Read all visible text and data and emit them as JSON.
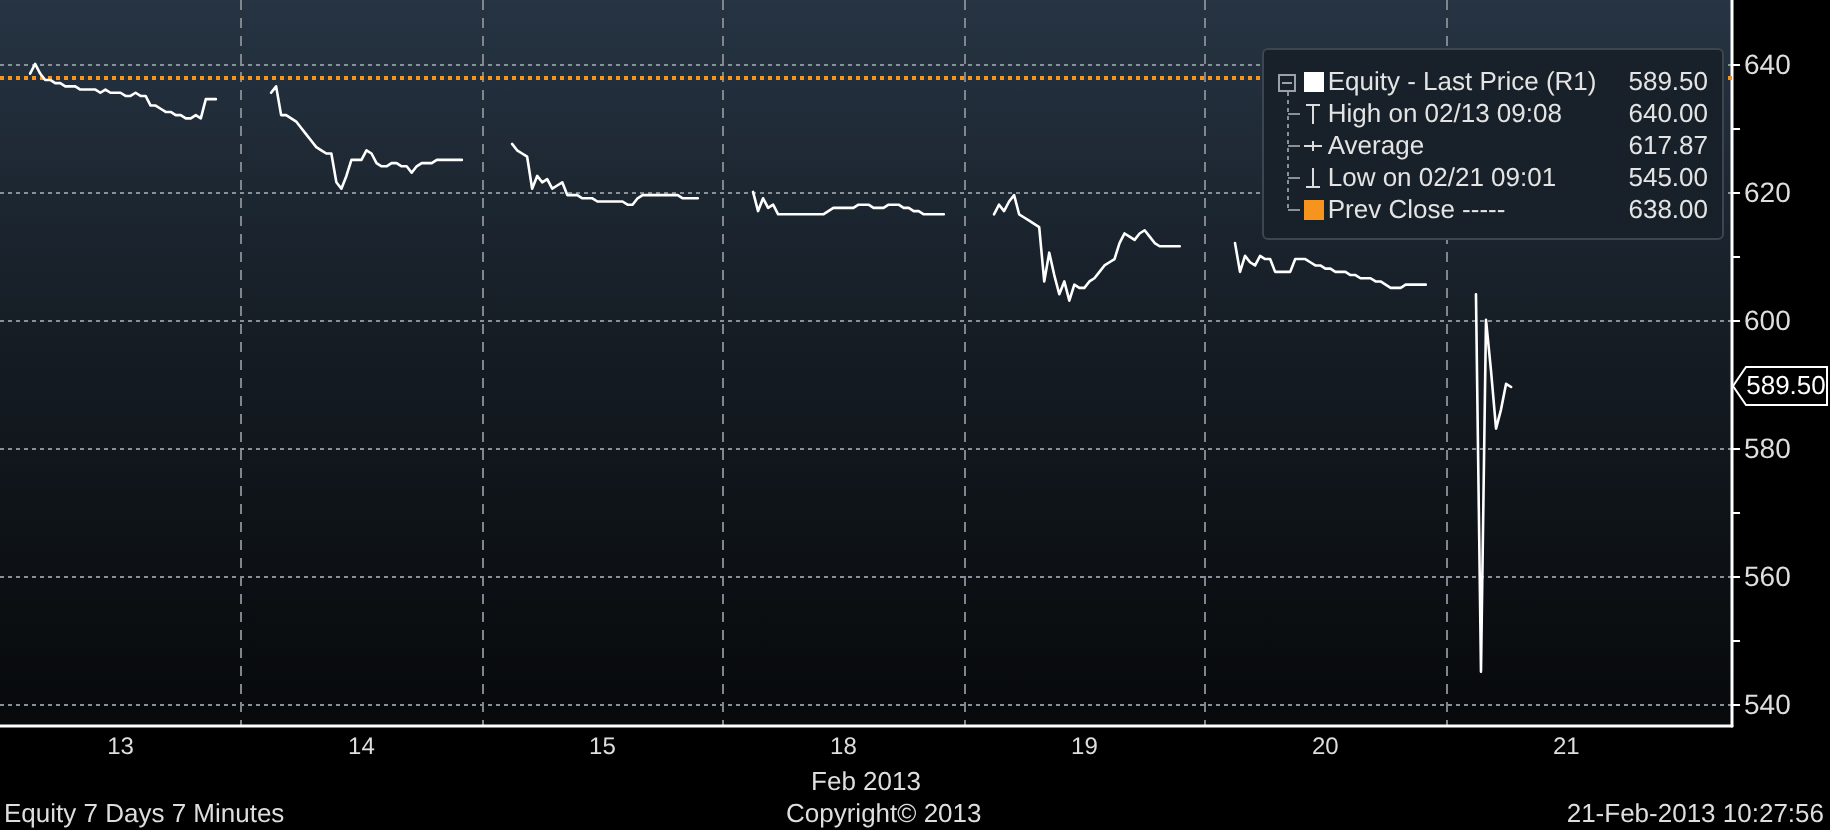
{
  "chart_data": {
    "type": "line",
    "xlabel": "Feb 2013",
    "categories": [
      null,
      null,
      null,
      null,
      null,
      null,
      null,
      null,
      null,
      null,
      null,
      null,
      null,
      null,
      null,
      null,
      null,
      null,
      null,
      null,
      null,
      null,
      null,
      null,
      "13",
      null,
      null,
      null,
      null,
      null,
      null,
      null,
      null,
      null,
      null,
      null,
      null,
      null,
      null,
      null,
      null,
      null,
      null,
      null,
      null,
      null,
      null,
      null,
      null,
      null,
      null,
      null,
      null,
      null,
      null,
      null,
      null,
      null,
      null,
      null,
      null,
      null,
      null,
      null,
      null,
      null,
      null,
      null,
      null,
      null,
      null,
      null,
      "14",
      null,
      null,
      null,
      null,
      null,
      null,
      null,
      null,
      null,
      null,
      null,
      null,
      null,
      null,
      null,
      null,
      null,
      null,
      null,
      null,
      null,
      null,
      null,
      null,
      null,
      null,
      null,
      null,
      null,
      null,
      null,
      null,
      null,
      null,
      null,
      null,
      null,
      null,
      null,
      null,
      null,
      null,
      null,
      null,
      null,
      null,
      null,
      "15",
      null,
      null,
      null,
      null,
      null,
      null,
      null,
      null,
      null,
      null,
      null,
      null,
      null,
      null,
      null,
      null,
      null,
      null,
      null,
      null,
      null,
      null,
      null,
      null,
      null,
      null,
      null,
      null,
      null,
      null,
      null,
      null,
      null,
      null,
      null,
      null,
      null,
      null,
      null,
      null,
      null,
      null,
      null,
      null,
      null,
      null,
      null,
      "18",
      null,
      null,
      null,
      null,
      null,
      null,
      null,
      null,
      null,
      null,
      null,
      null,
      null,
      null,
      null,
      null,
      null,
      null,
      null,
      null,
      null,
      null,
      null,
      null,
      null,
      null,
      null,
      null,
      null,
      null,
      null,
      null,
      null,
      null,
      null,
      null,
      null,
      null,
      null,
      null,
      null,
      null,
      null,
      null,
      null,
      null,
      null,
      "19",
      null,
      null,
      null,
      null,
      null,
      null,
      null,
      null,
      null,
      null,
      null,
      null,
      null,
      null,
      null,
      null,
      null,
      null,
      null,
      null,
      null,
      null,
      null,
      null,
      null,
      null,
      null,
      null,
      null,
      null,
      null,
      null,
      null,
      null,
      null,
      null,
      null,
      null,
      null,
      null,
      null,
      null,
      null,
      null,
      null,
      null,
      null,
      "20",
      null,
      null,
      null,
      null,
      null,
      null,
      null,
      null,
      null,
      null,
      null,
      null,
      null,
      null,
      null,
      null,
      null,
      null,
      null,
      null,
      null,
      null,
      null,
      null,
      null,
      null,
      null,
      null,
      null,
      null,
      null,
      null,
      null,
      null,
      null,
      null,
      null,
      null,
      null,
      null,
      null,
      null,
      null,
      null,
      null,
      null,
      null,
      "21",
      null,
      null,
      null,
      null,
      null,
      null,
      null,
      null,
      null,
      null,
      null,
      null,
      null,
      null,
      null,
      null,
      null,
      null,
      null,
      null,
      null,
      null,
      null,
      null,
      null,
      null,
      null,
      null,
      null,
      null,
      null,
      null,
      null
    ],
    "series": [
      {
        "name": "Equity - Last Price (R1)",
        "color": "#ffffff",
        "values": [
          null,
          null,
          null,
          null,
          null,
          null,
          638.5,
          640,
          638.5,
          637.5,
          637.5,
          637,
          637,
          636.5,
          636.5,
          636.5,
          636,
          636,
          636,
          636,
          635.5,
          636,
          635.5,
          635.5,
          635.5,
          635,
          635,
          635.5,
          635,
          635,
          633.5,
          633.5,
          633,
          632.5,
          632.5,
          632,
          632,
          631.5,
          631.5,
          632,
          631.5,
          634.5,
          634.5,
          634.5,
          null,
          null,
          null,
          null,
          null,
          null,
          null,
          null,
          null,
          null,
          635.5,
          636.5,
          632,
          632,
          631.5,
          631,
          630,
          629,
          628,
          627,
          626.5,
          626,
          626,
          621.5,
          620.5,
          622.5,
          625,
          625,
          625,
          626.5,
          626,
          624.5,
          624,
          624,
          624.5,
          624.5,
          624,
          624,
          623,
          624,
          624.5,
          624.5,
          624.5,
          625,
          625,
          625,
          625,
          625,
          625,
          null,
          null,
          null,
          null,
          null,
          null,
          null,
          null,
          null,
          627.5,
          626.5,
          626,
          625.5,
          620.5,
          622.5,
          621.5,
          622,
          620.5,
          621,
          621.5,
          619.5,
          619.5,
          619.5,
          619,
          619,
          619,
          618.5,
          618.5,
          618.5,
          618.5,
          618.5,
          618.5,
          618,
          618,
          619,
          619.5,
          619.5,
          619.5,
          619.5,
          619.5,
          619.5,
          619.5,
          619.5,
          619,
          619,
          619,
          619,
          null,
          null,
          null,
          null,
          null,
          null,
          null,
          null,
          null,
          null,
          620,
          617,
          619,
          617.5,
          618,
          616.5,
          616.5,
          616.5,
          616.5,
          616.5,
          616.5,
          616.5,
          616.5,
          616.5,
          616.5,
          617,
          617.5,
          617.5,
          617.5,
          617.5,
          617.5,
          618,
          618,
          618,
          617.5,
          617.5,
          617.5,
          618,
          618,
          618,
          617.5,
          617.5,
          617,
          617,
          616.5,
          616.5,
          616.5,
          616.5,
          616.5,
          null,
          null,
          null,
          null,
          null,
          null,
          null,
          null,
          null,
          616.5,
          618,
          617,
          618.5,
          619.5,
          616.5,
          616,
          615.5,
          615,
          614.5,
          606,
          610.5,
          607,
          604,
          606,
          603,
          605.5,
          605,
          605,
          606,
          606.5,
          607.5,
          608.5,
          609,
          609.5,
          612,
          613.5,
          613,
          612.5,
          613.5,
          614,
          613,
          612,
          611.5,
          611.5,
          611.5,
          611.5,
          611.5,
          null,
          null,
          null,
          null,
          null,
          null,
          null,
          null,
          null,
          null,
          612,
          607.5,
          610,
          609,
          608.5,
          610,
          609.5,
          609.5,
          607.5,
          607.5,
          607.5,
          607.5,
          609.5,
          609.5,
          609.5,
          609,
          608.5,
          608.5,
          608,
          608,
          607.5,
          607.5,
          607.5,
          607,
          607,
          606.5,
          606.5,
          606.5,
          606,
          606,
          605.5,
          605,
          605,
          605,
          605.5,
          605.5,
          605.5,
          605.5,
          605.5,
          null,
          null,
          null,
          null,
          null,
          null,
          null,
          null,
          null,
          604,
          545,
          600,
          592,
          583,
          586,
          590,
          589.5,
          null,
          null,
          null,
          null,
          null,
          null,
          null,
          null,
          null,
          null,
          null,
          null,
          null,
          null,
          null,
          null,
          null,
          null,
          null,
          null,
          null,
          null,
          null,
          null,
          null,
          null,
          null,
          null,
          null,
          null,
          null,
          null,
          null,
          null,
          null,
          null,
          null,
          null,
          null,
          null,
          null,
          null,
          null,
          null
        ]
      }
    ],
    "ylim": [
      536.5,
      650
    ],
    "yticks": [
      540,
      {
        "value": 550,
        "label": null
      },
      560,
      {
        "value": 570,
        "label": null
      },
      580,
      600,
      {
        "value": 610,
        "label": null
      },
      620,
      {
        "value": 630,
        "label": null
      },
      640
    ],
    "grid": true,
    "legend": "top right",
    "marker": "none",
    "ref_lines": [
      {
        "axis": "y",
        "value": 638,
        "label": "Prev Close -----",
        "color": "#f7941d",
        "line_style": "dotted"
      }
    ],
    "annotations": [
      "589.50",
      "High on 02/13 09:08",
      "640.00",
      "Average",
      "617.87",
      "Low on 02/21 09:01",
      "545.00",
      "638.00",
      "Equity 7 Days 7 Minutes",
      "Copyright© 2013",
      "21-Feb-2013 10:27:56"
    ]
  }
}
